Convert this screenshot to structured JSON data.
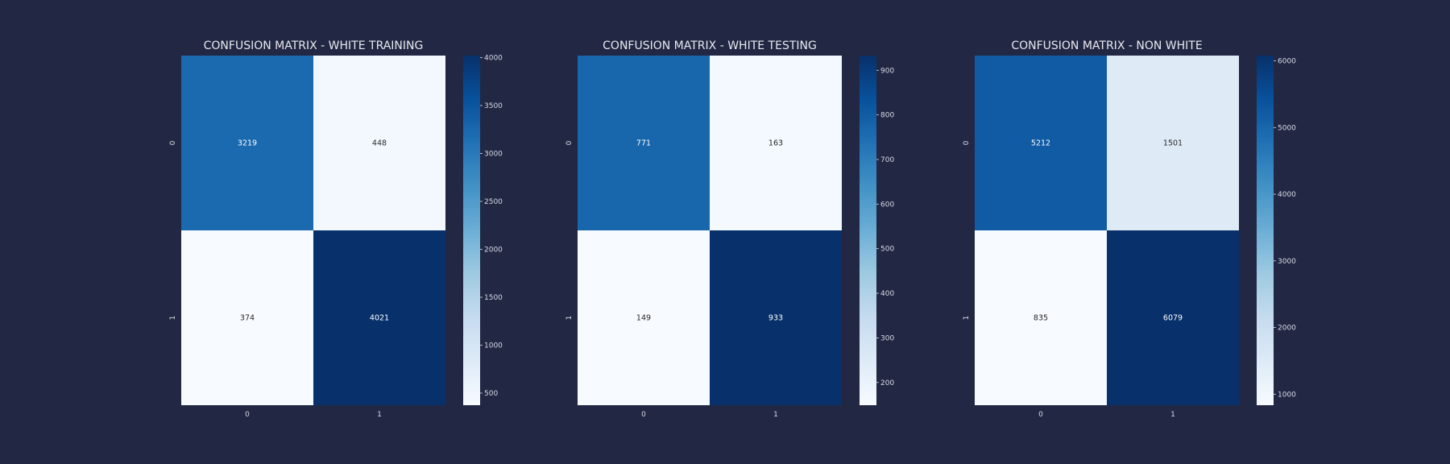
{
  "background_color": "#222844",
  "chart_data": [
    {
      "type": "heatmap",
      "title": "CONFUSION MATRIX - WHITE TRAINING",
      "x_categories": [
        "0",
        "1"
      ],
      "y_categories": [
        "0",
        "1"
      ],
      "values": [
        [
          3219,
          448
        ],
        [
          374,
          4021
        ]
      ],
      "colormap": "Blues",
      "color_range": [
        374,
        4021
      ],
      "colorbar_ticks": [
        500,
        1000,
        1500,
        2000,
        2500,
        3000,
        3500,
        4000
      ]
    },
    {
      "type": "heatmap",
      "title": "CONFUSION MATRIX - WHITE TESTING",
      "x_categories": [
        "0",
        "1"
      ],
      "y_categories": [
        "0",
        "1"
      ],
      "values": [
        [
          771,
          163
        ],
        [
          149,
          933
        ]
      ],
      "colormap": "Blues",
      "color_range": [
        149,
        933
      ],
      "colorbar_ticks": [
        200,
        300,
        400,
        500,
        600,
        700,
        800,
        900
      ]
    },
    {
      "type": "heatmap",
      "title": "CONFUSION MATRIX - NON WHITE",
      "x_categories": [
        "0",
        "1"
      ],
      "y_categories": [
        "0",
        "1"
      ],
      "values": [
        [
          5212,
          1501
        ],
        [
          835,
          6079
        ]
      ],
      "colormap": "Blues",
      "color_range": [
        835,
        6079
      ],
      "colorbar_ticks": [
        1000,
        2000,
        3000,
        4000,
        5000,
        6000
      ]
    }
  ]
}
